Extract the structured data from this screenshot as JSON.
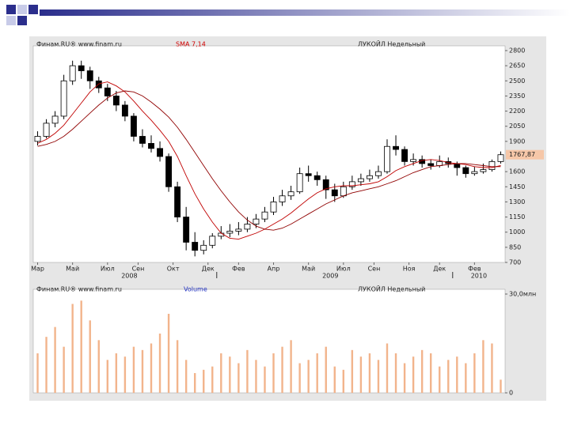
{
  "chart_data": [
    {
      "type": "candlestick",
      "source": "Финам.RU® www.finam.ru",
      "indicator": "SMA 7,14",
      "title": "ЛУКОЙЛ Недельный",
      "xlim": [
        -0.5,
        53.5
      ],
      "ylim": [
        700,
        2800
      ],
      "yticks": [
        2800,
        2650,
        2500,
        2350,
        2200,
        2050,
        1900,
        1600,
        1450,
        1300,
        1150,
        1000,
        850,
        700
      ],
      "xticks": [
        {
          "value": 0,
          "label": "Мар"
        },
        {
          "value": 4,
          "label": "Май"
        },
        {
          "value": 8,
          "label": "Июл"
        },
        {
          "value": 11.5,
          "label": "Сен"
        },
        {
          "value": 15.5,
          "label": "Окт"
        },
        {
          "value": 19.5,
          "label": "Дек"
        },
        {
          "value": 23,
          "label": "Фев"
        },
        {
          "value": 27,
          "label": "Апр"
        },
        {
          "value": 31,
          "label": "Май"
        },
        {
          "value": 35,
          "label": "Июл"
        },
        {
          "value": 38.5,
          "label": "Сен"
        },
        {
          "value": 42.5,
          "label": "Ноя"
        },
        {
          "value": 46,
          "label": "Дек"
        },
        {
          "value": 50,
          "label": "Фев"
        }
      ],
      "years": [
        {
          "value": 10.5,
          "label": "2008"
        },
        {
          "value": 33.5,
          "label": "2009"
        },
        {
          "value": 50.5,
          "label": "2010"
        }
      ],
      "year_breaks": [
        20.5,
        47.5
      ],
      "last_label": {
        "value": 1767.87,
        "label": "1767,87"
      },
      "open": [
        1900,
        1950,
        2080,
        2150,
        2500,
        2650,
        2600,
        2500,
        2430,
        2350,
        2260,
        2150,
        1950,
        1880,
        1830,
        1750,
        1450,
        1150,
        900,
        820,
        870,
        960,
        990,
        1010,
        1030,
        1080,
        1130,
        1200,
        1300,
        1360,
        1400,
        1580,
        1560,
        1520,
        1420,
        1360,
        1450,
        1500,
        1530,
        1560,
        1600,
        1850,
        1820,
        1700,
        1720,
        1680,
        1660,
        1700,
        1680,
        1640,
        1580,
        1600,
        1620,
        1700
      ],
      "high": [
        2000,
        2120,
        2200,
        2560,
        2700,
        2700,
        2640,
        2540,
        2470,
        2400,
        2300,
        2180,
        2020,
        1960,
        1900,
        1780,
        1500,
        1250,
        1000,
        920,
        990,
        1060,
        1080,
        1100,
        1150,
        1180,
        1250,
        1350,
        1420,
        1460,
        1640,
        1660,
        1600,
        1560,
        1480,
        1500,
        1560,
        1580,
        1620,
        1660,
        1920,
        1960,
        1850,
        1780,
        1760,
        1720,
        1760,
        1740,
        1700,
        1660,
        1650,
        1680,
        1720,
        1800
      ],
      "low": [
        1860,
        1930,
        2040,
        2120,
        2460,
        2520,
        2420,
        2380,
        2300,
        2200,
        2100,
        1900,
        1840,
        1790,
        1700,
        1400,
        1100,
        820,
        760,
        780,
        840,
        930,
        950,
        970,
        1000,
        1040,
        1100,
        1170,
        1260,
        1320,
        1380,
        1500,
        1460,
        1330,
        1300,
        1340,
        1420,
        1460,
        1500,
        1530,
        1580,
        1760,
        1660,
        1660,
        1640,
        1620,
        1640,
        1640,
        1560,
        1540,
        1560,
        1580,
        1600,
        1680
      ],
      "close": [
        1950,
        2080,
        2150,
        2500,
        2650,
        2600,
        2500,
        2430,
        2350,
        2260,
        2150,
        1950,
        1880,
        1830,
        1750,
        1450,
        1150,
        900,
        820,
        870,
        960,
        990,
        1010,
        1030,
        1080,
        1130,
        1200,
        1300,
        1360,
        1400,
        1580,
        1560,
        1520,
        1420,
        1360,
        1450,
        1500,
        1530,
        1560,
        1600,
        1850,
        1820,
        1700,
        1720,
        1680,
        1660,
        1700,
        1680,
        1640,
        1580,
        1600,
        1620,
        1700,
        1767.87
      ],
      "series": [
        {
          "color": "#c00000",
          "values": [
            1880,
            1920,
            1980,
            2060,
            2170,
            2280,
            2390,
            2470,
            2490,
            2450,
            2390,
            2300,
            2200,
            2110,
            2010,
            1900,
            1750,
            1560,
            1380,
            1230,
            1100,
            990,
            940,
            930,
            960,
            990,
            1030,
            1080,
            1130,
            1190,
            1260,
            1330,
            1390,
            1430,
            1450,
            1460,
            1460,
            1470,
            1480,
            1500,
            1550,
            1610,
            1650,
            1680,
            1710,
            1720,
            1710,
            1690,
            1680,
            1670,
            1650,
            1640,
            1640,
            1660
          ]
        },
        {
          "color": "#900000",
          "values": [
            1850,
            1870,
            1900,
            1950,
            2020,
            2100,
            2180,
            2260,
            2330,
            2380,
            2400,
            2390,
            2350,
            2290,
            2220,
            2140,
            2040,
            1920,
            1790,
            1660,
            1530,
            1410,
            1300,
            1200,
            1120,
            1060,
            1030,
            1020,
            1040,
            1080,
            1130,
            1180,
            1230,
            1280,
            1320,
            1360,
            1390,
            1410,
            1430,
            1450,
            1480,
            1510,
            1550,
            1590,
            1620,
            1650,
            1660,
            1670,
            1680,
            1680,
            1670,
            1660,
            1650,
            1650
          ]
        }
      ]
    },
    {
      "type": "bar",
      "source": "Финам.RU® www.finam.ru",
      "indicator": "Volume",
      "title": "ЛУКОЙЛ Недельный",
      "xlim": [
        -0.5,
        53.5
      ],
      "ylim": [
        0,
        30
      ],
      "color": "#f2b48c",
      "yticks": [
        {
          "value": 30,
          "label": "30,0млн"
        },
        0
      ],
      "values": [
        12,
        17,
        20,
        14,
        27,
        28,
        22,
        16,
        10,
        12,
        11,
        14,
        13,
        15,
        18,
        24,
        16,
        10,
        6,
        7,
        8,
        12,
        11,
        9,
        13,
        10,
        8,
        12,
        14,
        16,
        9,
        10,
        12,
        14,
        8,
        7,
        13,
        11,
        12,
        10,
        15,
        12,
        9,
        11,
        13,
        12,
        8,
        10,
        11,
        9,
        12,
        16,
        15,
        4
      ]
    }
  ]
}
